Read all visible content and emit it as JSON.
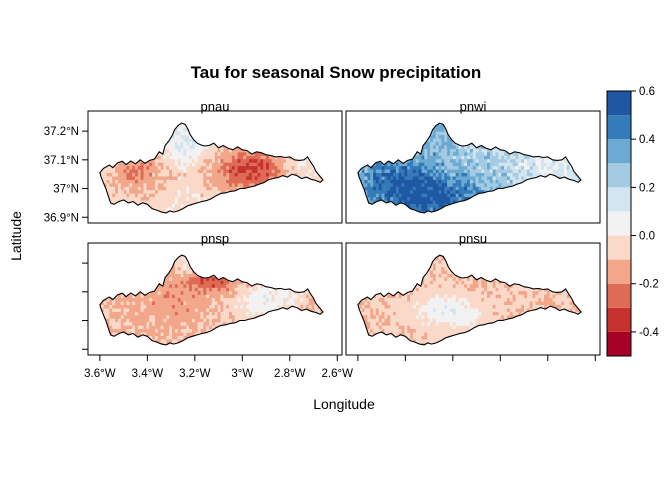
{
  "chart_data": {
    "type": "heatmap",
    "title": "Tau for seasonal Snow precipitation",
    "xlabel": "Longitude",
    "ylabel": "Latitude",
    "xlim": [
      -3.65,
      -2.58
    ],
    "ylim": [
      36.88,
      37.27
    ],
    "x_ticks": [
      -3.6,
      -3.4,
      -3.2,
      -3.0,
      -2.8,
      -2.6
    ],
    "x_tick_labels": [
      "3.6°W",
      "3.4°W",
      "3.2°W",
      "3°W",
      "2.8°W",
      "2.6°W"
    ],
    "y_ticks": [
      36.9,
      37.0,
      37.1,
      37.2
    ],
    "y_tick_labels": [
      "36.9°N",
      "37°N",
      "37.1°N",
      "37.2°N"
    ],
    "colorbar": {
      "breaks": [
        -0.5,
        -0.4,
        -0.3,
        -0.2,
        -0.1,
        0.0,
        0.1,
        0.2,
        0.3,
        0.4,
        0.5,
        0.6
      ],
      "tick_values": [
        -0.4,
        -0.2,
        0.0,
        0.2,
        0.4,
        0.6
      ],
      "tick_labels": [
        "-0.4",
        "-0.2",
        "0.0",
        "0.2",
        "0.4",
        "0.6"
      ],
      "colors": [
        "#a50026",
        "#c4332e",
        "#df6a55",
        "#f2a68a",
        "#fbd9c9",
        "#f2f2f2",
        "#d3e5f0",
        "#a5cbe2",
        "#6baad2",
        "#357bb9",
        "#1f58a2"
      ]
    },
    "panels": [
      {
        "name": "pnau",
        "summary": "mostly near zero (light grey/pale pink) in the west, positive light blue in north-centre, strongly negative (red, down to about -0.3) in the east-centre",
        "tau_range": [
          -0.3,
          0.15
        ]
      },
      {
        "name": "pnwi",
        "summary": "positive throughout; strongest (about 0.5) along the southern and central parts of the range, weaker (0.1–0.3) in the east",
        "tau_range": [
          0.1,
          0.55
        ]
      },
      {
        "name": "pnsp",
        "summary": "weakly negative (pale salmon, about -0.1 to -0.2) in the west and centre, darker red patches in the north-centre, weakly positive light blue in the east",
        "tau_range": [
          -0.3,
          0.15
        ]
      },
      {
        "name": "pnsu",
        "summary": "nearly uniform weak negative (about -0.1) with small light-blue positive patches in the centre",
        "tau_range": [
          -0.15,
          0.2
        ]
      }
    ]
  }
}
